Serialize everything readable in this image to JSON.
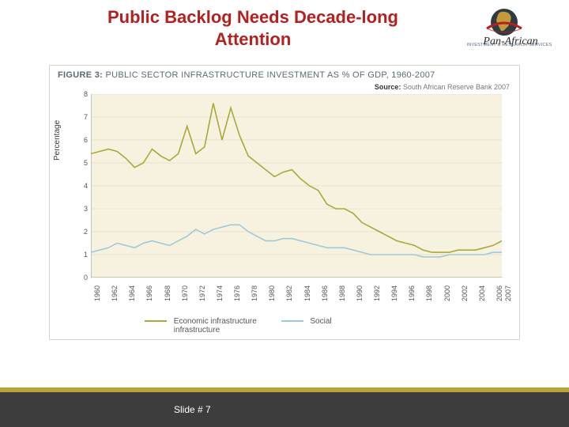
{
  "title": {
    "text": "Public Backlog Needs Decade-long Attention",
    "color": "#b41f1f"
  },
  "logo": {
    "brand_top": "Pan-African",
    "caption": "INVESTMENT & RESEARCH SERVICES",
    "globe_fill": "#2f3b44",
    "africa_fill": "#c49a3a",
    "ring_fill": "#b41f1f",
    "text_color": "#2a2a2a"
  },
  "figure": {
    "lead": "FIGURE 3:",
    "title": "PUBLIC SECTOR INFRASTRUCTURE INVESTMENT AS % OF GDP, 1960-2007",
    "title_color": "#5a6a74",
    "source_lead": "Source:",
    "source_text": "South African Reserve Bank 2007",
    "background": "#f7f2df",
    "border": "#d8d4c7"
  },
  "chart": {
    "type": "line",
    "ylabel": "Percentage",
    "ylim": [
      0,
      8
    ],
    "ytick_step": 1,
    "xlim": [
      1960,
      2007
    ],
    "xtick_step": 2,
    "grid_color": "#d4cfbd",
    "axis_color": "#9a9684",
    "line_width": 1.6,
    "plot_bg": "#f7f2df",
    "series": [
      {
        "name": "Economic infrastructure\ninfrastructure",
        "short": "Economic infrastructure infrastructure",
        "color": "#a9a83a",
        "years": [
          1960,
          1961,
          1962,
          1963,
          1964,
          1965,
          1966,
          1967,
          1968,
          1969,
          1970,
          1971,
          1972,
          1973,
          1974,
          1975,
          1976,
          1977,
          1978,
          1979,
          1980,
          1981,
          1982,
          1983,
          1984,
          1985,
          1986,
          1987,
          1988,
          1989,
          1990,
          1991,
          1992,
          1993,
          1994,
          1995,
          1996,
          1997,
          1998,
          1999,
          2000,
          2001,
          2002,
          2003,
          2004,
          2005,
          2006,
          2007
        ],
        "values": [
          5.4,
          5.5,
          5.6,
          5.5,
          5.2,
          4.8,
          5.0,
          5.6,
          5.3,
          5.1,
          5.4,
          6.6,
          5.4,
          5.7,
          7.6,
          6.0,
          7.4,
          6.2,
          5.3,
          5.0,
          4.7,
          4.4,
          4.6,
          4.7,
          4.3,
          4.0,
          3.8,
          3.2,
          3.0,
          3.0,
          2.8,
          2.4,
          2.2,
          2.0,
          1.8,
          1.6,
          1.5,
          1.4,
          1.2,
          1.1,
          1.1,
          1.1,
          1.2,
          1.2,
          1.2,
          1.3,
          1.4,
          1.6
        ]
      },
      {
        "name": "Social",
        "short": "Social",
        "color": "#9fc9d6",
        "years": [
          1960,
          1961,
          1962,
          1963,
          1964,
          1965,
          1966,
          1967,
          1968,
          1969,
          1970,
          1971,
          1972,
          1973,
          1974,
          1975,
          1976,
          1977,
          1978,
          1979,
          1980,
          1981,
          1982,
          1983,
          1984,
          1985,
          1986,
          1987,
          1988,
          1989,
          1990,
          1991,
          1992,
          1993,
          1994,
          1995,
          1996,
          1997,
          1998,
          1999,
          2000,
          2001,
          2002,
          2003,
          2004,
          2005,
          2006,
          2007
        ],
        "values": [
          1.1,
          1.2,
          1.3,
          1.5,
          1.4,
          1.3,
          1.5,
          1.6,
          1.5,
          1.4,
          1.6,
          1.8,
          2.1,
          1.9,
          2.1,
          2.2,
          2.3,
          2.3,
          2.0,
          1.8,
          1.6,
          1.6,
          1.7,
          1.7,
          1.6,
          1.5,
          1.4,
          1.3,
          1.3,
          1.3,
          1.2,
          1.1,
          1.0,
          1.0,
          1.0,
          1.0,
          1.0,
          1.0,
          0.9,
          0.9,
          0.9,
          1.0,
          1.0,
          1.0,
          1.0,
          1.0,
          1.1,
          1.1
        ]
      }
    ]
  },
  "footer": {
    "slide_label": "Slide # 7",
    "accent_color": "#b7a33a",
    "bar_color": "#3d3d3d"
  }
}
